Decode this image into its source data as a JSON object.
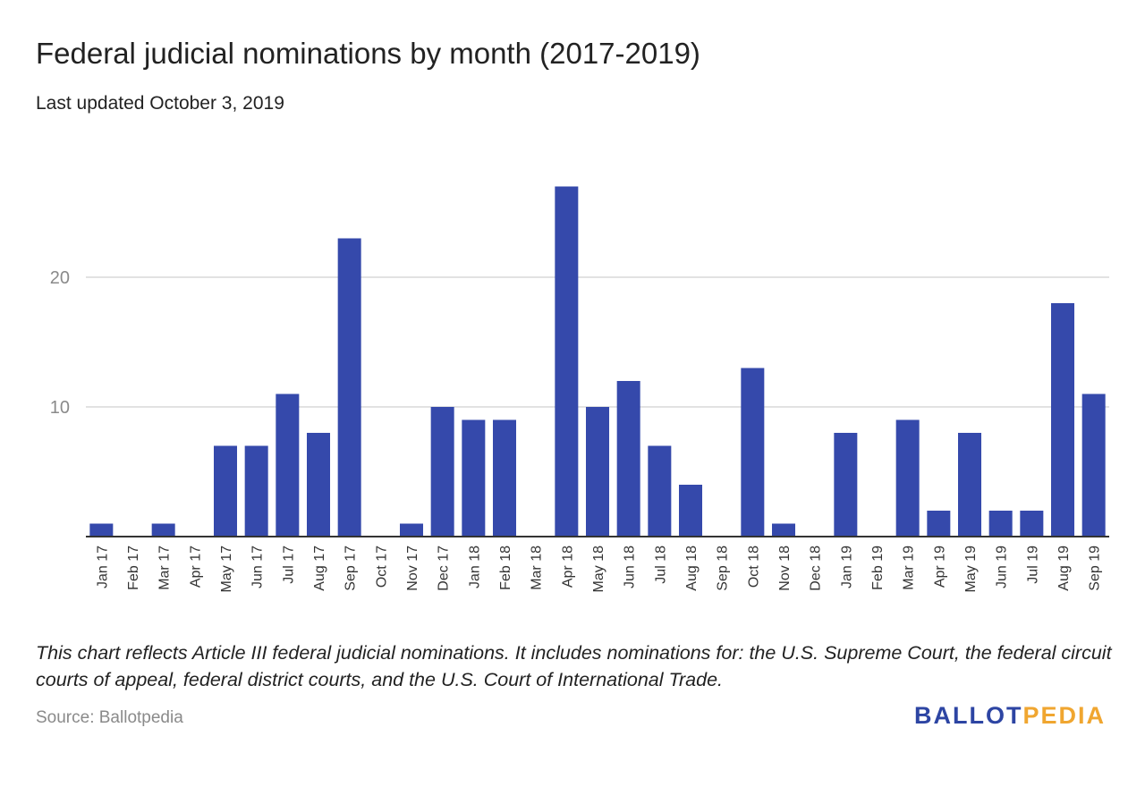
{
  "header": {
    "title": "Federal judicial nominations by month (2017-2019)",
    "subtitle": "Last updated October 3, 2019"
  },
  "footer": {
    "note": "This chart reflects Article III federal judicial nominations. It includes nominations for: the U.S. Supreme Court, the federal circuit courts of appeal, federal district courts, and the U.S. Court of International Trade.",
    "source": "Source: Ballotpedia",
    "logo_part_a": "BALLOT",
    "logo_part_b": "PEDIA"
  },
  "colors": {
    "bar": "#3549ab",
    "gridline": "#d9d9d9",
    "axis": "#333333",
    "tick_label": "#8a8a8a",
    "category_label": "#333333",
    "logo_blue": "#2d45a3",
    "logo_orange": "#f0a630"
  },
  "chart_data": {
    "type": "bar",
    "title": "Federal judicial nominations by month (2017-2019)",
    "subtitle": "Last updated October 3, 2019",
    "xlabel": "",
    "ylabel": "",
    "categories": [
      "Jan 17",
      "Feb 17",
      "Mar 17",
      "Apr 17",
      "May 17",
      "Jun 17",
      "Jul 17",
      "Aug 17",
      "Sep 17",
      "Oct 17",
      "Nov 17",
      "Dec 17",
      "Jan 18",
      "Feb 18",
      "Mar 18",
      "Apr 18",
      "May 18",
      "Jun 18",
      "Jul 18",
      "Aug 18",
      "Sep 18",
      "Oct 18",
      "Nov 18",
      "Dec 18",
      "Jan 19",
      "Feb 19",
      "Mar 19",
      "Apr 19",
      "May 19",
      "Jun 19",
      "Jul 19",
      "Aug 19",
      "Sep 19"
    ],
    "values": [
      1,
      0,
      1,
      0,
      7,
      7,
      11,
      8,
      23,
      0,
      1,
      10,
      9,
      9,
      0,
      27,
      10,
      12,
      7,
      4,
      0,
      13,
      1,
      0,
      8,
      0,
      9,
      2,
      8,
      2,
      2,
      18,
      11
    ],
    "yticks": [
      10,
      20
    ],
    "ylim": [
      0,
      30
    ],
    "grid": true,
    "legend": "none"
  }
}
